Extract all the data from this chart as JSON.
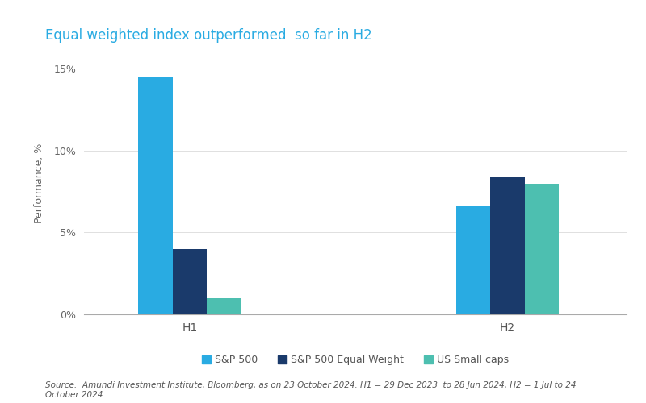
{
  "title": "Equal weighted index outperformed  so far in H2",
  "ylabel": "Performance, %",
  "categories": [
    "H1",
    "H2"
  ],
  "series": {
    "S&P 500": [
      14.5,
      6.6
    ],
    "S&P 500 Equal Weight": [
      4.0,
      8.4
    ],
    "US Small caps": [
      1.0,
      8.0
    ]
  },
  "colors": {
    "S&P 500": "#29ABE2",
    "S&P 500 Equal Weight": "#1A3A6B",
    "US Small caps": "#4DBFB0"
  },
  "ylim": [
    0,
    0.16
  ],
  "yticks": [
    0,
    0.05,
    0.1,
    0.15
  ],
  "ytick_labels": [
    "0%",
    "5%",
    "10%",
    "15%"
  ],
  "title_color": "#29ABE2",
  "title_fontsize": 12,
  "ylabel_fontsize": 9,
  "tick_fontsize": 9,
  "legend_fontsize": 9,
  "source_text": "Source:  Amundi Investment Institute, Bloomberg, as on 23 October 2024. H1 = 29 Dec 2023  to 28 Jun 2024, H2 = 1 Jul to 24\nOctober 2024",
  "source_fontsize": 7.5,
  "background_color": "#ffffff",
  "bar_width": 0.13,
  "x_positions": [
    1.0,
    2.2
  ]
}
